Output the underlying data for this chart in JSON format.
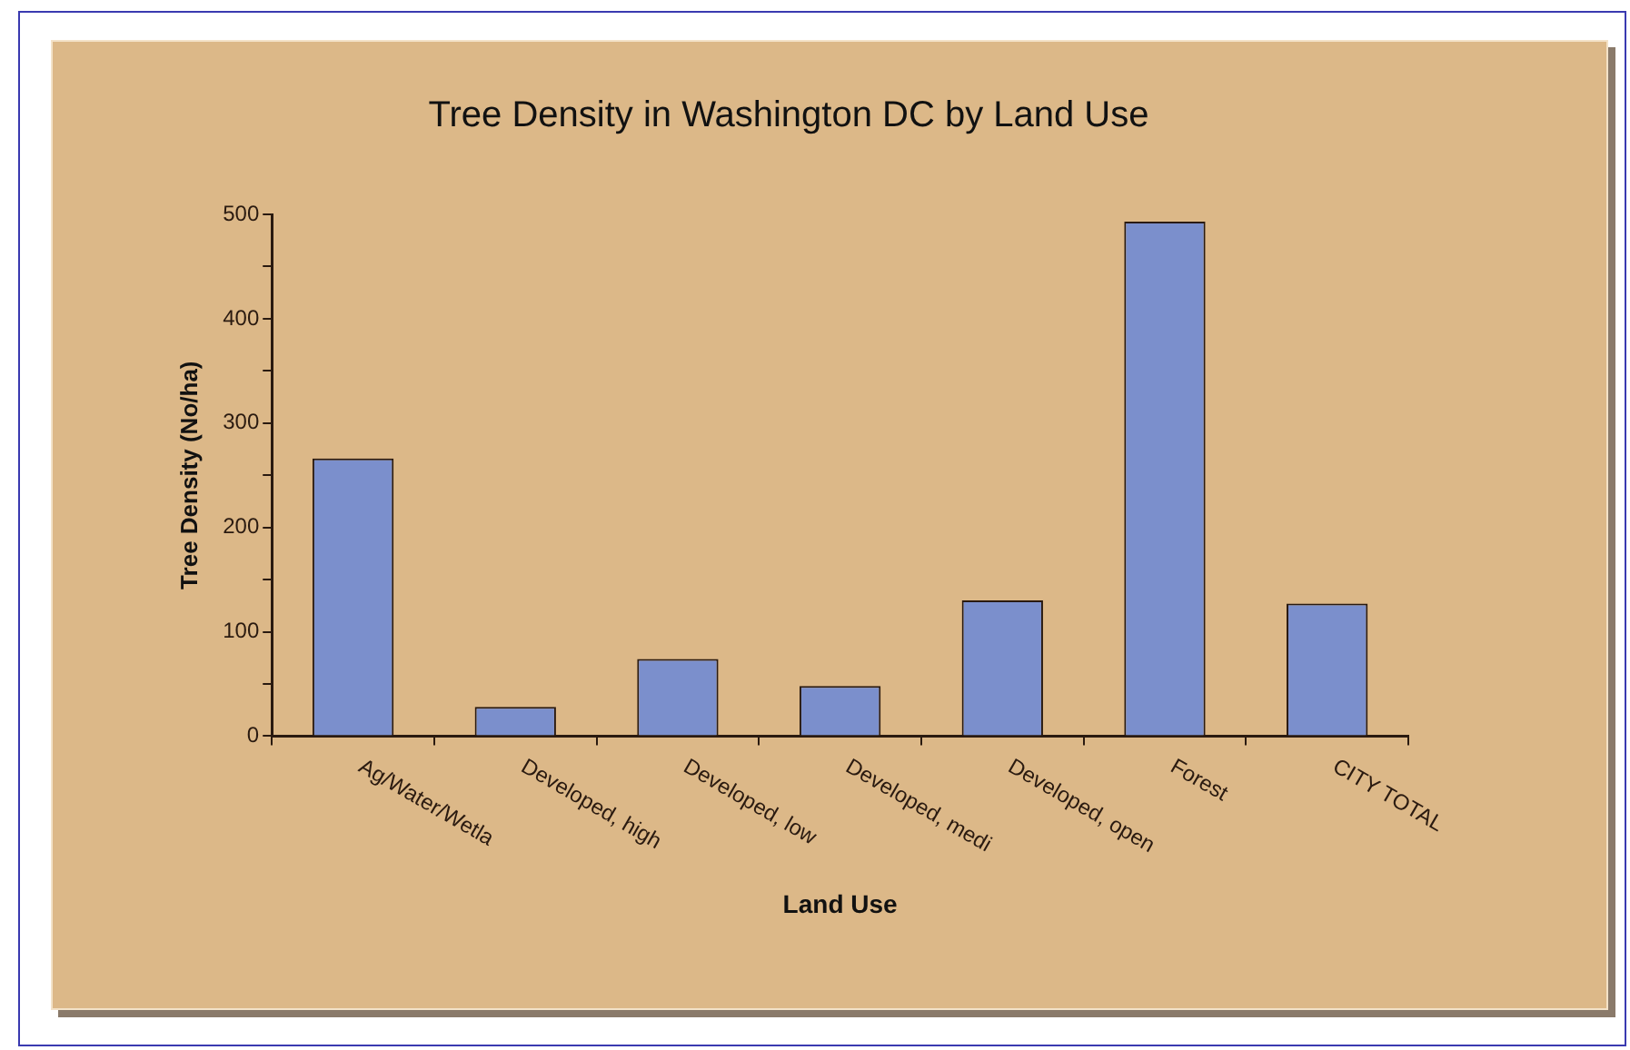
{
  "chart_data": {
    "type": "bar",
    "title": "Tree Density in Washington DC by Land Use",
    "xlabel": "Land Use",
    "ylabel": "Tree Density (No/ha)",
    "categories": [
      "Ag/Water/Wetla",
      "Developed, high",
      "Developed, low",
      "Developed, medi",
      "Developed, open",
      "Forest",
      "CITY TOTAL"
    ],
    "values": [
      266,
      28,
      74,
      48,
      130,
      493,
      127
    ],
    "color": "#7b8fcc",
    "ylim": [
      0,
      500
    ],
    "yticks": [
      0,
      {
        "value": 50,
        "label": null
      },
      100,
      {
        "value": 150,
        "label": null
      },
      200,
      {
        "value": 250,
        "label": null
      },
      300,
      {
        "value": 350,
        "label": null
      },
      400,
      {
        "value": 450,
        "label": null
      },
      500
    ],
    "grid": false,
    "legend": false
  }
}
